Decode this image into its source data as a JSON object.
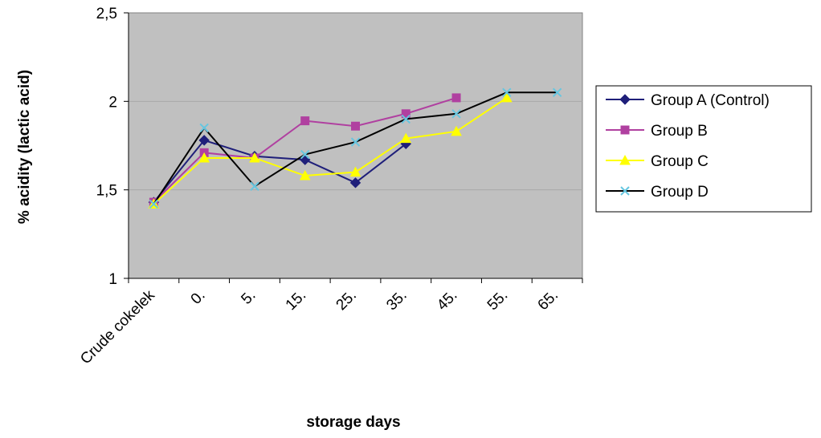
{
  "chart_data": {
    "type": "line",
    "xlabel": "storage days",
    "ylabel": "% acidity (lactic acid)",
    "categories": [
      "Crude cokelek",
      "0.",
      "5.",
      "15.",
      "25.",
      "35.",
      "45.",
      "55.",
      "65."
    ],
    "y_ticks": [
      "1",
      "1,5",
      "2",
      "2,5"
    ],
    "ylim": [
      1,
      2.5
    ],
    "grid": true,
    "legend_position": "right",
    "plot_background": "#c0c0c0",
    "series": [
      {
        "name": "Group A (Control)",
        "color": "#1f1f7a",
        "marker": "diamond",
        "values": [
          1.43,
          1.78,
          1.69,
          1.67,
          1.54,
          1.76,
          null,
          null,
          null
        ]
      },
      {
        "name": "Group B",
        "color": "#b040a0",
        "marker": "square",
        "values": [
          1.43,
          1.71,
          1.68,
          1.89,
          1.86,
          1.93,
          2.02,
          null,
          null
        ]
      },
      {
        "name": "Group C",
        "color": "#ffff00",
        "marker": "triangle",
        "values": [
          1.42,
          1.68,
          1.68,
          1.58,
          1.6,
          1.79,
          1.83,
          2.02,
          null
        ]
      },
      {
        "name": "Group D",
        "line_color": "#000000",
        "color": "#66c6e0",
        "marker": "x",
        "values": [
          1.42,
          1.85,
          1.52,
          1.7,
          1.77,
          1.9,
          1.93,
          2.05,
          2.05
        ]
      }
    ]
  }
}
